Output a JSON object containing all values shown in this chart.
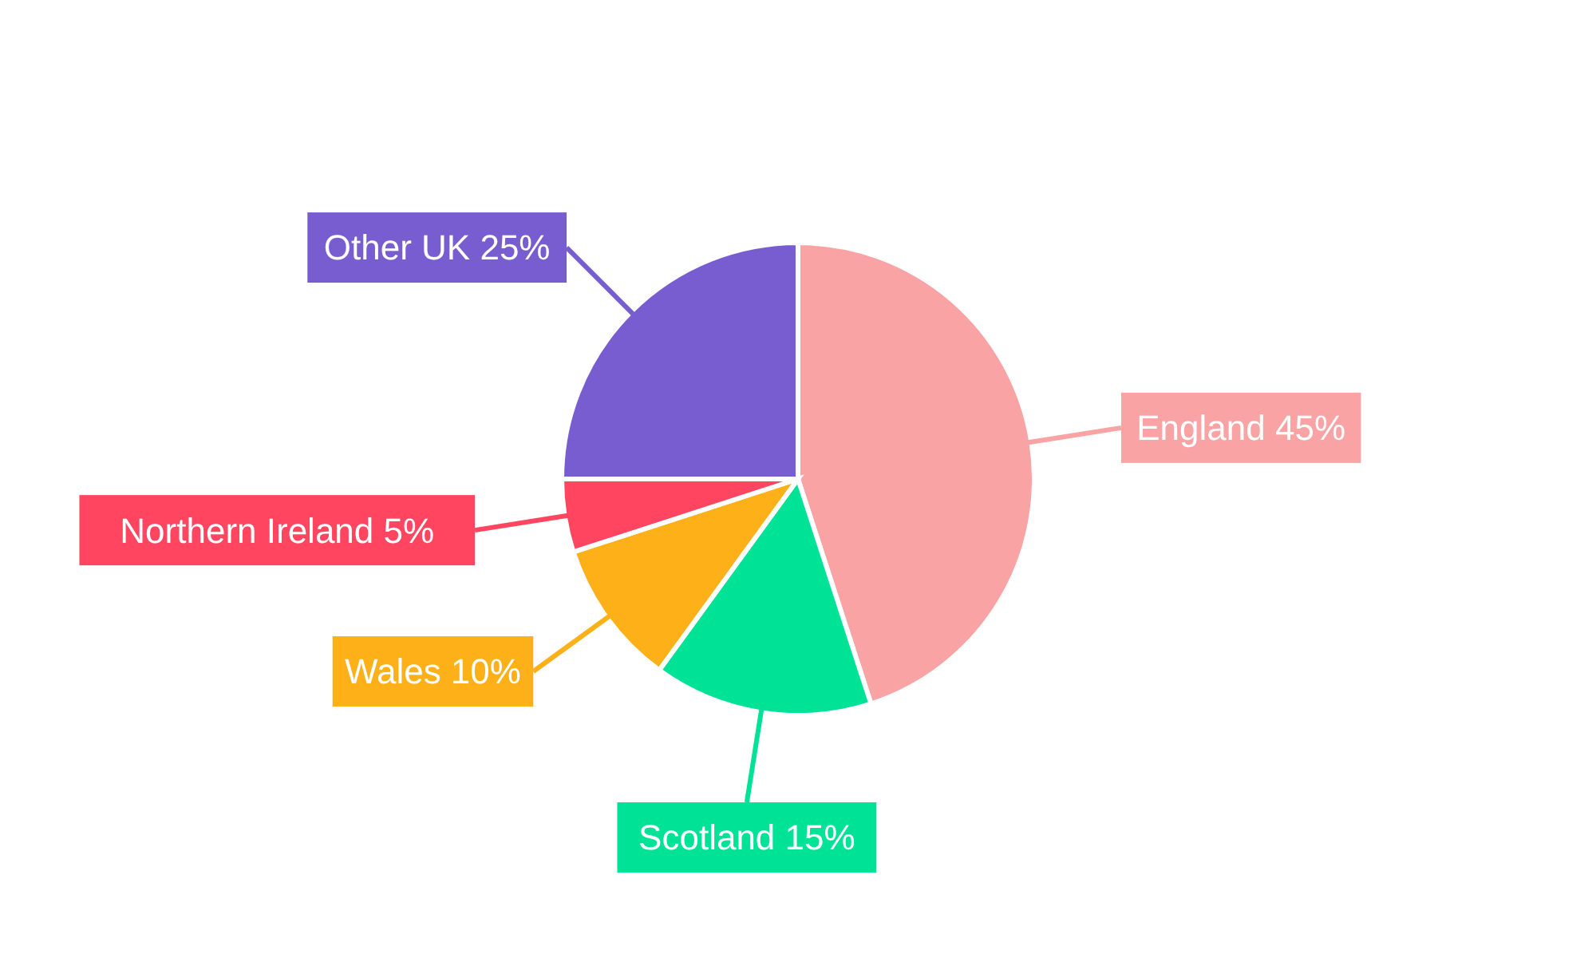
{
  "chart_data": {
    "type": "pie",
    "categories": [
      "England",
      "Scotland",
      "Wales",
      "Northern Ireland",
      "Other UK"
    ],
    "values": [
      45,
      15,
      10,
      5,
      25
    ],
    "value_labels": [
      "45%",
      "15%",
      "10%",
      "5%",
      "25%"
    ],
    "colors": [
      "#f9a3a4",
      "#00e396",
      "#feb019",
      "#ff4560",
      "#775dd0"
    ],
    "legend": false
  }
}
